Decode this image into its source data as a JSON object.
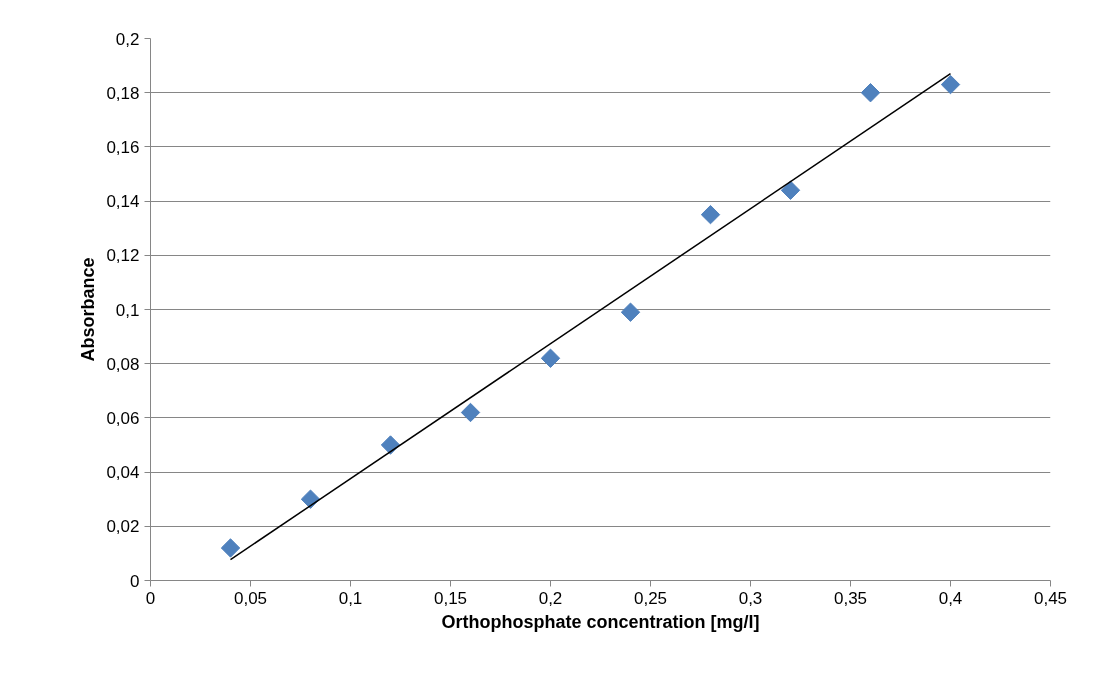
{
  "chart_data": {
    "type": "scatter",
    "xlabel": "Orthophosphate concentration [mg/l]",
    "ylabel": "Absorbance",
    "xlim": [
      0,
      0.45
    ],
    "ylim": [
      0,
      0.2
    ],
    "xticks": [
      0,
      {
        "value": 0.05,
        "label": "0,05"
      },
      {
        "value": 0.1,
        "label": "0,1"
      },
      {
        "value": 0.15,
        "label": "0,15"
      },
      {
        "value": 0.2,
        "label": "0,2"
      },
      {
        "value": 0.25,
        "label": "0,25"
      },
      {
        "value": 0.3,
        "label": "0,3"
      },
      {
        "value": 0.35,
        "label": "0,35"
      },
      {
        "value": 0.4,
        "label": "0,4"
      },
      {
        "value": 0.45,
        "label": "0,45"
      }
    ],
    "yticks": [
      0,
      {
        "value": 0.02,
        "label": "0,02"
      },
      {
        "value": 0.04,
        "label": "0,04"
      },
      {
        "value": 0.06,
        "label": "0,06"
      },
      {
        "value": 0.08,
        "label": "0,08"
      },
      {
        "value": 0.1,
        "label": "0,1"
      },
      {
        "value": 0.12,
        "label": "0,12"
      },
      {
        "value": 0.14,
        "label": "0,14"
      },
      {
        "value": 0.16,
        "label": "0,16"
      },
      {
        "value": 0.18,
        "label": "0,18"
      },
      {
        "value": 0.2,
        "label": "0,2"
      }
    ],
    "grid": "y",
    "series": [
      {
        "color": "#4f81bd",
        "marker": "diamond",
        "x": [
          0.04,
          0.08,
          0.12,
          0.16,
          0.2,
          0.24,
          0.28,
          0.32,
          0.36,
          0.4
        ],
        "values": [
          0.012,
          0.03,
          0.05,
          0.062,
          0.082,
          0.099,
          0.135,
          0.144,
          0.18,
          0.183
        ]
      },
      {
        "type": "line",
        "marker": "none",
        "color": "#000000",
        "x": [
          0.04,
          0.4
        ],
        "values": [
          0.0077,
          0.187
        ]
      }
    ]
  }
}
